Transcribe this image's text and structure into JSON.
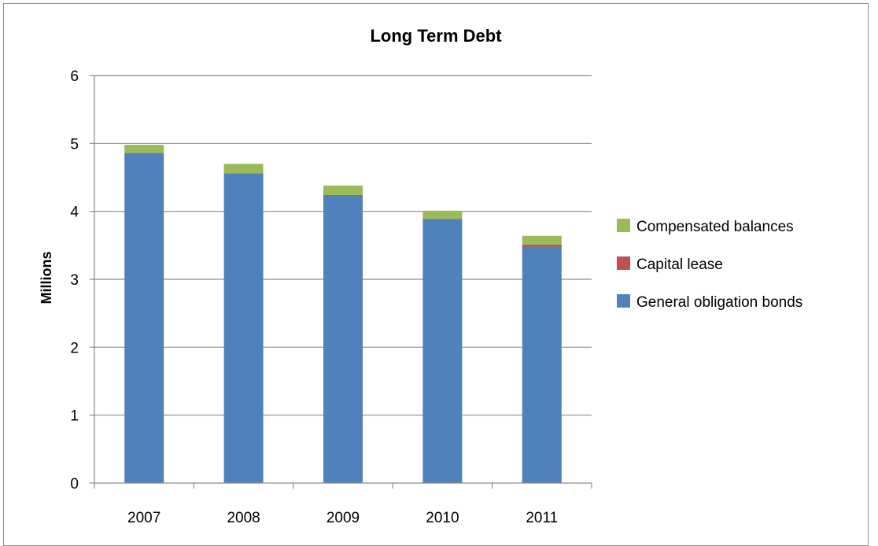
{
  "chart_data": {
    "type": "bar",
    "stacked": true,
    "title": "Long Term Debt",
    "xlabel": "",
    "ylabel": "Millions",
    "ylim": [
      0,
      6
    ],
    "yticks": [
      "0",
      "1",
      "2",
      "3",
      "4",
      "5",
      "6"
    ],
    "categories": [
      "2007",
      "2008",
      "2009",
      "2010",
      "2011"
    ],
    "grid": true,
    "legend_position": "right",
    "series": [
      {
        "name": "General obligation bonds",
        "color": "#4f81bd",
        "values": [
          4.86,
          4.56,
          4.24,
          3.89,
          3.48
        ]
      },
      {
        "name": "Capital lease",
        "color": "#c0504d",
        "values": [
          0,
          0,
          0,
          0,
          0.03
        ]
      },
      {
        "name": "Compensated balances",
        "color": "#9bbb59",
        "values": [
          0.12,
          0.14,
          0.14,
          0.12,
          0.13
        ]
      }
    ]
  }
}
